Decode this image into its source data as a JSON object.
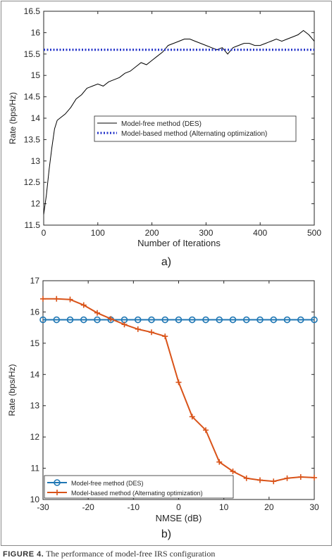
{
  "chart_data": [
    {
      "type": "line",
      "panel_label": "a)",
      "xlabel": "Number of Iterations",
      "ylabel": "Rate (bps/Hz)",
      "xlim": [
        0,
        500
      ],
      "ylim": [
        11.5,
        16.5
      ],
      "xticks": [
        "0",
        "100",
        "200",
        "300",
        "400",
        "500"
      ],
      "yticks": [
        "11.5",
        "12",
        "12.5",
        "13",
        "13.5",
        "14",
        "14.5",
        "15",
        "15.5",
        "16",
        "16.5"
      ],
      "legend": [
        "Model-free method (DES)",
        "Model-based method (Alternating optimization)"
      ],
      "legend_position": "center-right",
      "grid": false,
      "series": [
        {
          "name": "Model-free method (DES)",
          "style": "solid",
          "color": "#000000",
          "x": [
            0,
            5,
            10,
            15,
            20,
            25,
            30,
            40,
            50,
            60,
            70,
            80,
            90,
            100,
            110,
            120,
            130,
            140,
            150,
            160,
            170,
            180,
            190,
            200,
            210,
            220,
            230,
            240,
            250,
            260,
            270,
            280,
            290,
            300,
            310,
            320,
            330,
            340,
            350,
            360,
            370,
            380,
            390,
            400,
            410,
            420,
            430,
            440,
            450,
            460,
            470,
            480,
            490,
            500
          ],
          "y": [
            11.75,
            12.2,
            12.8,
            13.3,
            13.75,
            13.95,
            14.0,
            14.1,
            14.25,
            14.45,
            14.55,
            14.7,
            14.75,
            14.8,
            14.75,
            14.85,
            14.9,
            14.95,
            15.05,
            15.1,
            15.2,
            15.3,
            15.25,
            15.35,
            15.45,
            15.55,
            15.7,
            15.75,
            15.8,
            15.85,
            15.85,
            15.8,
            15.75,
            15.7,
            15.65,
            15.6,
            15.65,
            15.5,
            15.65,
            15.7,
            15.75,
            15.75,
            15.7,
            15.7,
            15.75,
            15.8,
            15.85,
            15.8,
            15.85,
            15.9,
            15.95,
            16.05,
            15.95,
            15.8
          ]
        },
        {
          "name": "Model-based method (Alternating optimization)",
          "style": "dotted",
          "color": "#1f2fc8",
          "x": [
            0,
            500
          ],
          "y": [
            15.6,
            15.6
          ]
        }
      ]
    },
    {
      "type": "line",
      "panel_label": "b)",
      "xlabel": "NMSE (dB)",
      "ylabel": "Rate (bps/Hz)",
      "xlim": [
        -30,
        30
      ],
      "ylim": [
        10,
        17
      ],
      "xticks": [
        "-30",
        "-20",
        "-10",
        "0",
        "10",
        "20",
        "30"
      ],
      "yticks": [
        "10",
        "11",
        "12",
        "13",
        "14",
        "15",
        "16",
        "17"
      ],
      "legend": [
        "Model-free method (DES)",
        "Model-based method (Alternating optimization)"
      ],
      "legend_position": "bottom-left",
      "grid": false,
      "series": [
        {
          "name": "Model-free method (DES)",
          "marker": "circle",
          "color": "#1f77b4",
          "x": [
            -30,
            -27,
            -24,
            -21,
            -18,
            -15,
            -12,
            -9,
            -6,
            -3,
            0,
            3,
            6,
            9,
            12,
            15,
            18,
            21,
            24,
            27,
            30
          ],
          "y": [
            15.75,
            15.75,
            15.75,
            15.75,
            15.75,
            15.75,
            15.75,
            15.75,
            15.75,
            15.75,
            15.75,
            15.75,
            15.75,
            15.75,
            15.75,
            15.75,
            15.75,
            15.75,
            15.75,
            15.75,
            15.75
          ]
        },
        {
          "name": "Model-based method (Alternating optimization)",
          "marker": "plus",
          "color": "#d95319",
          "x": [
            -30,
            -27,
            -24,
            -21,
            -18,
            -15,
            -12,
            -9,
            -6,
            -3,
            0,
            3,
            6,
            9,
            12,
            15,
            18,
            21,
            24,
            27,
            30
          ],
          "y": [
            16.42,
            16.42,
            16.4,
            16.22,
            15.97,
            15.78,
            15.6,
            15.45,
            15.35,
            15.22,
            13.75,
            12.65,
            12.22,
            11.2,
            10.9,
            10.68,
            10.62,
            10.58,
            10.68,
            10.72,
            10.7
          ]
        }
      ]
    }
  ],
  "caption": {
    "label": "FIGURE 4.",
    "text": " The performance of model-free IRS configuration"
  }
}
